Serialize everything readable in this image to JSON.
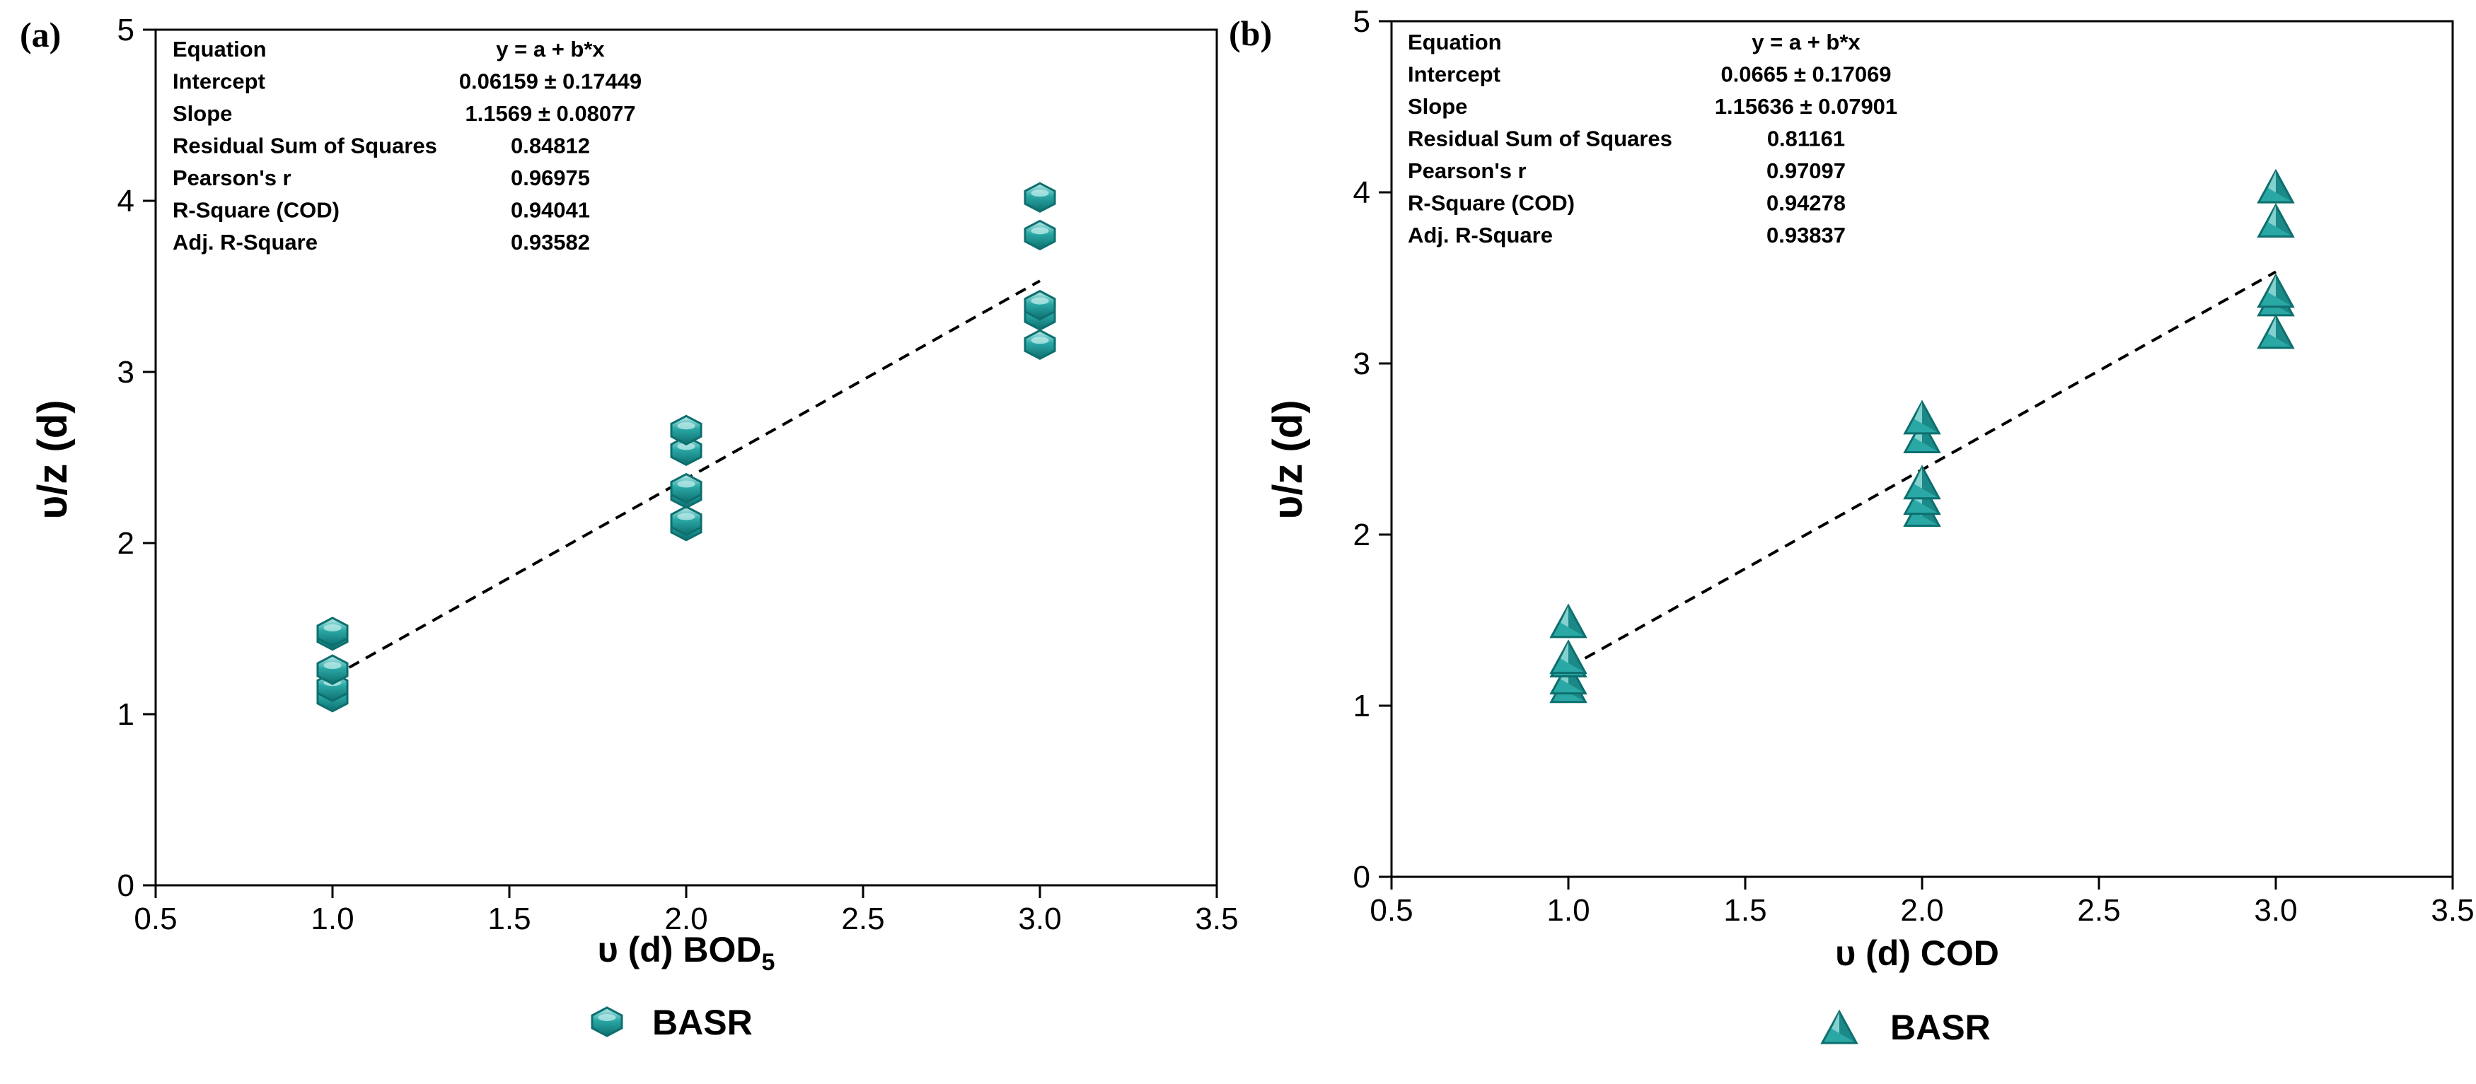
{
  "colors": {
    "marker_fill": "#2aa8a6",
    "marker_dark": "#0d6f6e",
    "marker_light": "#bfeceb",
    "fit_line": "#000000",
    "axis": "#000000"
  },
  "chart_data": [
    {
      "type": "scatter",
      "panel_label": "(a)",
      "xlabel": "υ (d) BOD",
      "xlabel_sub": "5",
      "ylabel": "υ/z (d)",
      "xlim": [
        0.5,
        3.5
      ],
      "ylim": [
        0,
        5
      ],
      "xticks": [
        "0.5",
        "1.0",
        "1.5",
        "2.0",
        "2.5",
        "3.0",
        "3.5"
      ],
      "yticks": [
        "0",
        "1",
        "2",
        "3",
        "4",
        "5"
      ],
      "marker": "hexagon",
      "series": [
        {
          "name": "BASR",
          "points": [
            [
              1.0,
              1.1
            ],
            [
              1.0,
              1.16
            ],
            [
              1.0,
              1.26
            ],
            [
              1.0,
              1.46
            ],
            [
              1.0,
              1.48
            ],
            [
              2.0,
              2.1
            ],
            [
              2.0,
              2.13
            ],
            [
              2.0,
              2.29
            ],
            [
              2.0,
              2.32
            ],
            [
              2.0,
              2.54
            ],
            [
              2.0,
              2.66
            ],
            [
              3.0,
              3.16
            ],
            [
              3.0,
              3.33
            ],
            [
              3.0,
              3.39
            ],
            [
              3.0,
              3.8
            ],
            [
              3.0,
              4.02
            ]
          ]
        }
      ],
      "fit": {
        "style": "dashed",
        "intercept": 0.06159,
        "slope": 1.1569,
        "x_range": [
          1.0,
          3.0
        ]
      },
      "legend_label": "BASR",
      "stats_table": [
        {
          "label": "Equation",
          "value": "y = a + b*x"
        },
        {
          "label": "Intercept",
          "value": "0.06159 ± 0.17449"
        },
        {
          "label": "Slope",
          "value": "1.1569 ± 0.08077"
        },
        {
          "label": "Residual Sum of Squares",
          "value": "0.84812"
        },
        {
          "label": "Pearson's r",
          "value": "0.96975"
        },
        {
          "label": "R-Square (COD)",
          "value": "0.94041"
        },
        {
          "label": "Adj. R-Square",
          "value": "0.93582"
        }
      ]
    },
    {
      "type": "scatter",
      "panel_label": "(b)",
      "xlabel": "υ (d) COD",
      "xlabel_sub": "",
      "ylabel": "υ/z (d)",
      "xlim": [
        0.5,
        3.5
      ],
      "ylim": [
        0,
        5
      ],
      "xticks": [
        "0.5",
        "1.0",
        "1.5",
        "2.0",
        "2.5",
        "3.0",
        "3.5"
      ],
      "yticks": [
        "0",
        "1",
        "2",
        "3",
        "4",
        "5"
      ],
      "marker": "triangle",
      "series": [
        {
          "name": "BASR",
          "points": [
            [
              1.0,
              1.1
            ],
            [
              1.0,
              1.15
            ],
            [
              1.0,
              1.25
            ],
            [
              1.0,
              1.27
            ],
            [
              1.0,
              1.48
            ],
            [
              2.0,
              2.13
            ],
            [
              2.0,
              2.2
            ],
            [
              2.0,
              2.29
            ],
            [
              2.0,
              2.56
            ],
            [
              2.0,
              2.67
            ],
            [
              3.0,
              3.17
            ],
            [
              3.0,
              3.36
            ],
            [
              3.0,
              3.41
            ],
            [
              3.0,
              3.82
            ],
            [
              3.0,
              4.02
            ]
          ]
        }
      ],
      "fit": {
        "style": "dashed",
        "intercept": 0.0665,
        "slope": 1.15636,
        "x_range": [
          1.0,
          3.0
        ]
      },
      "legend_label": "BASR",
      "stats_table": [
        {
          "label": "Equation",
          "value": "y = a + b*x"
        },
        {
          "label": "Intercept",
          "value": "0.0665 ± 0.17069"
        },
        {
          "label": "Slope",
          "value": "1.15636 ± 0.07901"
        },
        {
          "label": "Residual Sum of Squares",
          "value": "0.81161"
        },
        {
          "label": "Pearson's r",
          "value": "0.97097"
        },
        {
          "label": "R-Square (COD)",
          "value": "0.94278"
        },
        {
          "label": "Adj. R-Square",
          "value": "0.93837"
        }
      ]
    }
  ]
}
